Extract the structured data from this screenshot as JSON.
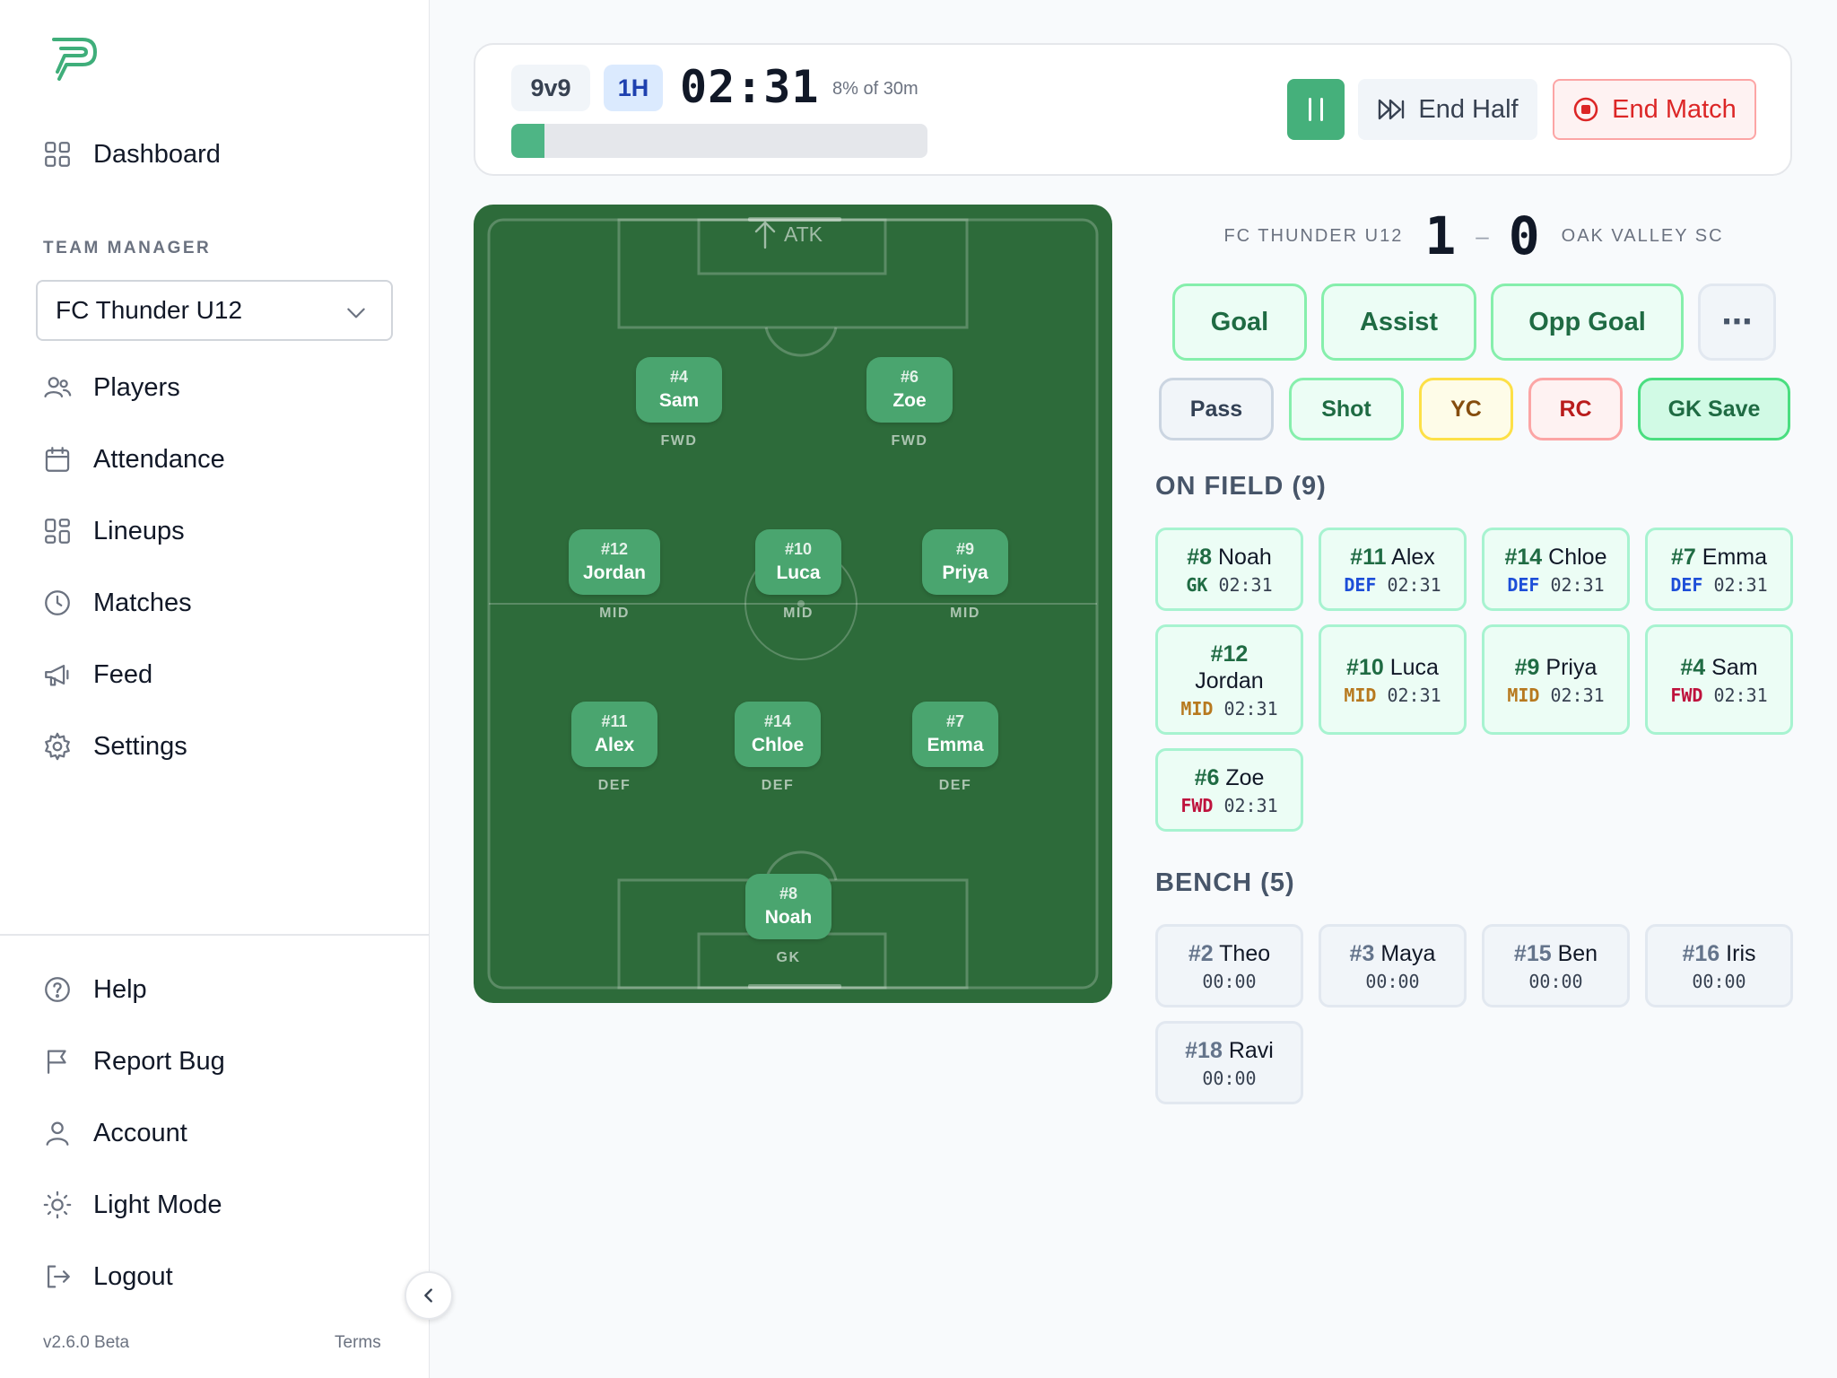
{
  "sidebar": {
    "nav_top": [
      {
        "label": "Dashboard",
        "icon": "grid-icon"
      }
    ],
    "section_label": "TEAM MANAGER",
    "team_select": "FC Thunder U12",
    "nav_team": [
      {
        "label": "Players",
        "icon": "users-icon"
      },
      {
        "label": "Attendance",
        "icon": "calendar-icon"
      },
      {
        "label": "Lineups",
        "icon": "layout-icon"
      },
      {
        "label": "Matches",
        "icon": "clock-icon"
      },
      {
        "label": "Feed",
        "icon": "megaphone-icon"
      },
      {
        "label": "Settings",
        "icon": "gear-icon"
      }
    ],
    "nav_bottom": [
      {
        "label": "Help",
        "icon": "help-icon"
      },
      {
        "label": "Report Bug",
        "icon": "flag-icon"
      },
      {
        "label": "Account",
        "icon": "user-icon"
      },
      {
        "label": "Light Mode",
        "icon": "sun-icon"
      },
      {
        "label": "Logout",
        "icon": "logout-icon"
      }
    ],
    "version": "v2.6.0 Beta",
    "terms": "Terms"
  },
  "timer": {
    "format": "9v9",
    "half": "1H",
    "clock": "02:31",
    "percent_label": "8% of 30m",
    "progress": 0.08,
    "end_half_label": "End Half",
    "end_match_label": "End Match"
  },
  "pitch": {
    "attack_label": "ATK",
    "players": [
      {
        "num": "#4",
        "name": "Sam",
        "pos": "FWD"
      },
      {
        "num": "#6",
        "name": "Zoe",
        "pos": "FWD"
      },
      {
        "num": "#12",
        "name": "Jordan",
        "pos": "MID"
      },
      {
        "num": "#10",
        "name": "Luca",
        "pos": "MID"
      },
      {
        "num": "#9",
        "name": "Priya",
        "pos": "MID"
      },
      {
        "num": "#11",
        "name": "Alex",
        "pos": "DEF"
      },
      {
        "num": "#14",
        "name": "Chloe",
        "pos": "DEF"
      },
      {
        "num": "#7",
        "name": "Emma",
        "pos": "DEF"
      },
      {
        "num": "#8",
        "name": "Noah",
        "pos": "GK"
      }
    ]
  },
  "score": {
    "home_team": "FC THUNDER U12",
    "home_score": "1",
    "dash": "–",
    "away_score": "0",
    "away_team": "OAK VALLEY SC"
  },
  "events": {
    "primary": [
      "Goal",
      "Assist",
      "Opp Goal"
    ],
    "more": "⋯",
    "secondary": [
      "Pass",
      "Shot",
      "YC",
      "RC",
      "GK Save"
    ]
  },
  "on_field": {
    "title": "ON FIELD (9)",
    "players": [
      {
        "num": "#8",
        "name": "Noah",
        "pos": "GK",
        "time": "02:31"
      },
      {
        "num": "#11",
        "name": "Alex",
        "pos": "DEF",
        "time": "02:31"
      },
      {
        "num": "#14",
        "name": "Chloe",
        "pos": "DEF",
        "time": "02:31"
      },
      {
        "num": "#7",
        "name": "Emma",
        "pos": "DEF",
        "time": "02:31"
      },
      {
        "num": "#12",
        "name": "Jordan",
        "pos": "MID",
        "time": "02:31"
      },
      {
        "num": "#10",
        "name": "Luca",
        "pos": "MID",
        "time": "02:31"
      },
      {
        "num": "#9",
        "name": "Priya",
        "pos": "MID",
        "time": "02:31"
      },
      {
        "num": "#4",
        "name": "Sam",
        "pos": "FWD",
        "time": "02:31"
      },
      {
        "num": "#6",
        "name": "Zoe",
        "pos": "FWD",
        "time": "02:31"
      }
    ]
  },
  "bench": {
    "title": "BENCH (5)",
    "players": [
      {
        "num": "#2",
        "name": "Theo",
        "time": "00:00"
      },
      {
        "num": "#3",
        "name": "Maya",
        "time": "00:00"
      },
      {
        "num": "#15",
        "name": "Ben",
        "time": "00:00"
      },
      {
        "num": "#16",
        "name": "Iris",
        "time": "00:00"
      },
      {
        "num": "#18",
        "name": "Ravi",
        "time": "00:00"
      }
    ]
  },
  "colors": {
    "accent_green": "#45b07b",
    "pitch_green": "#2d6b3a",
    "danger_red": "#dc2626"
  }
}
